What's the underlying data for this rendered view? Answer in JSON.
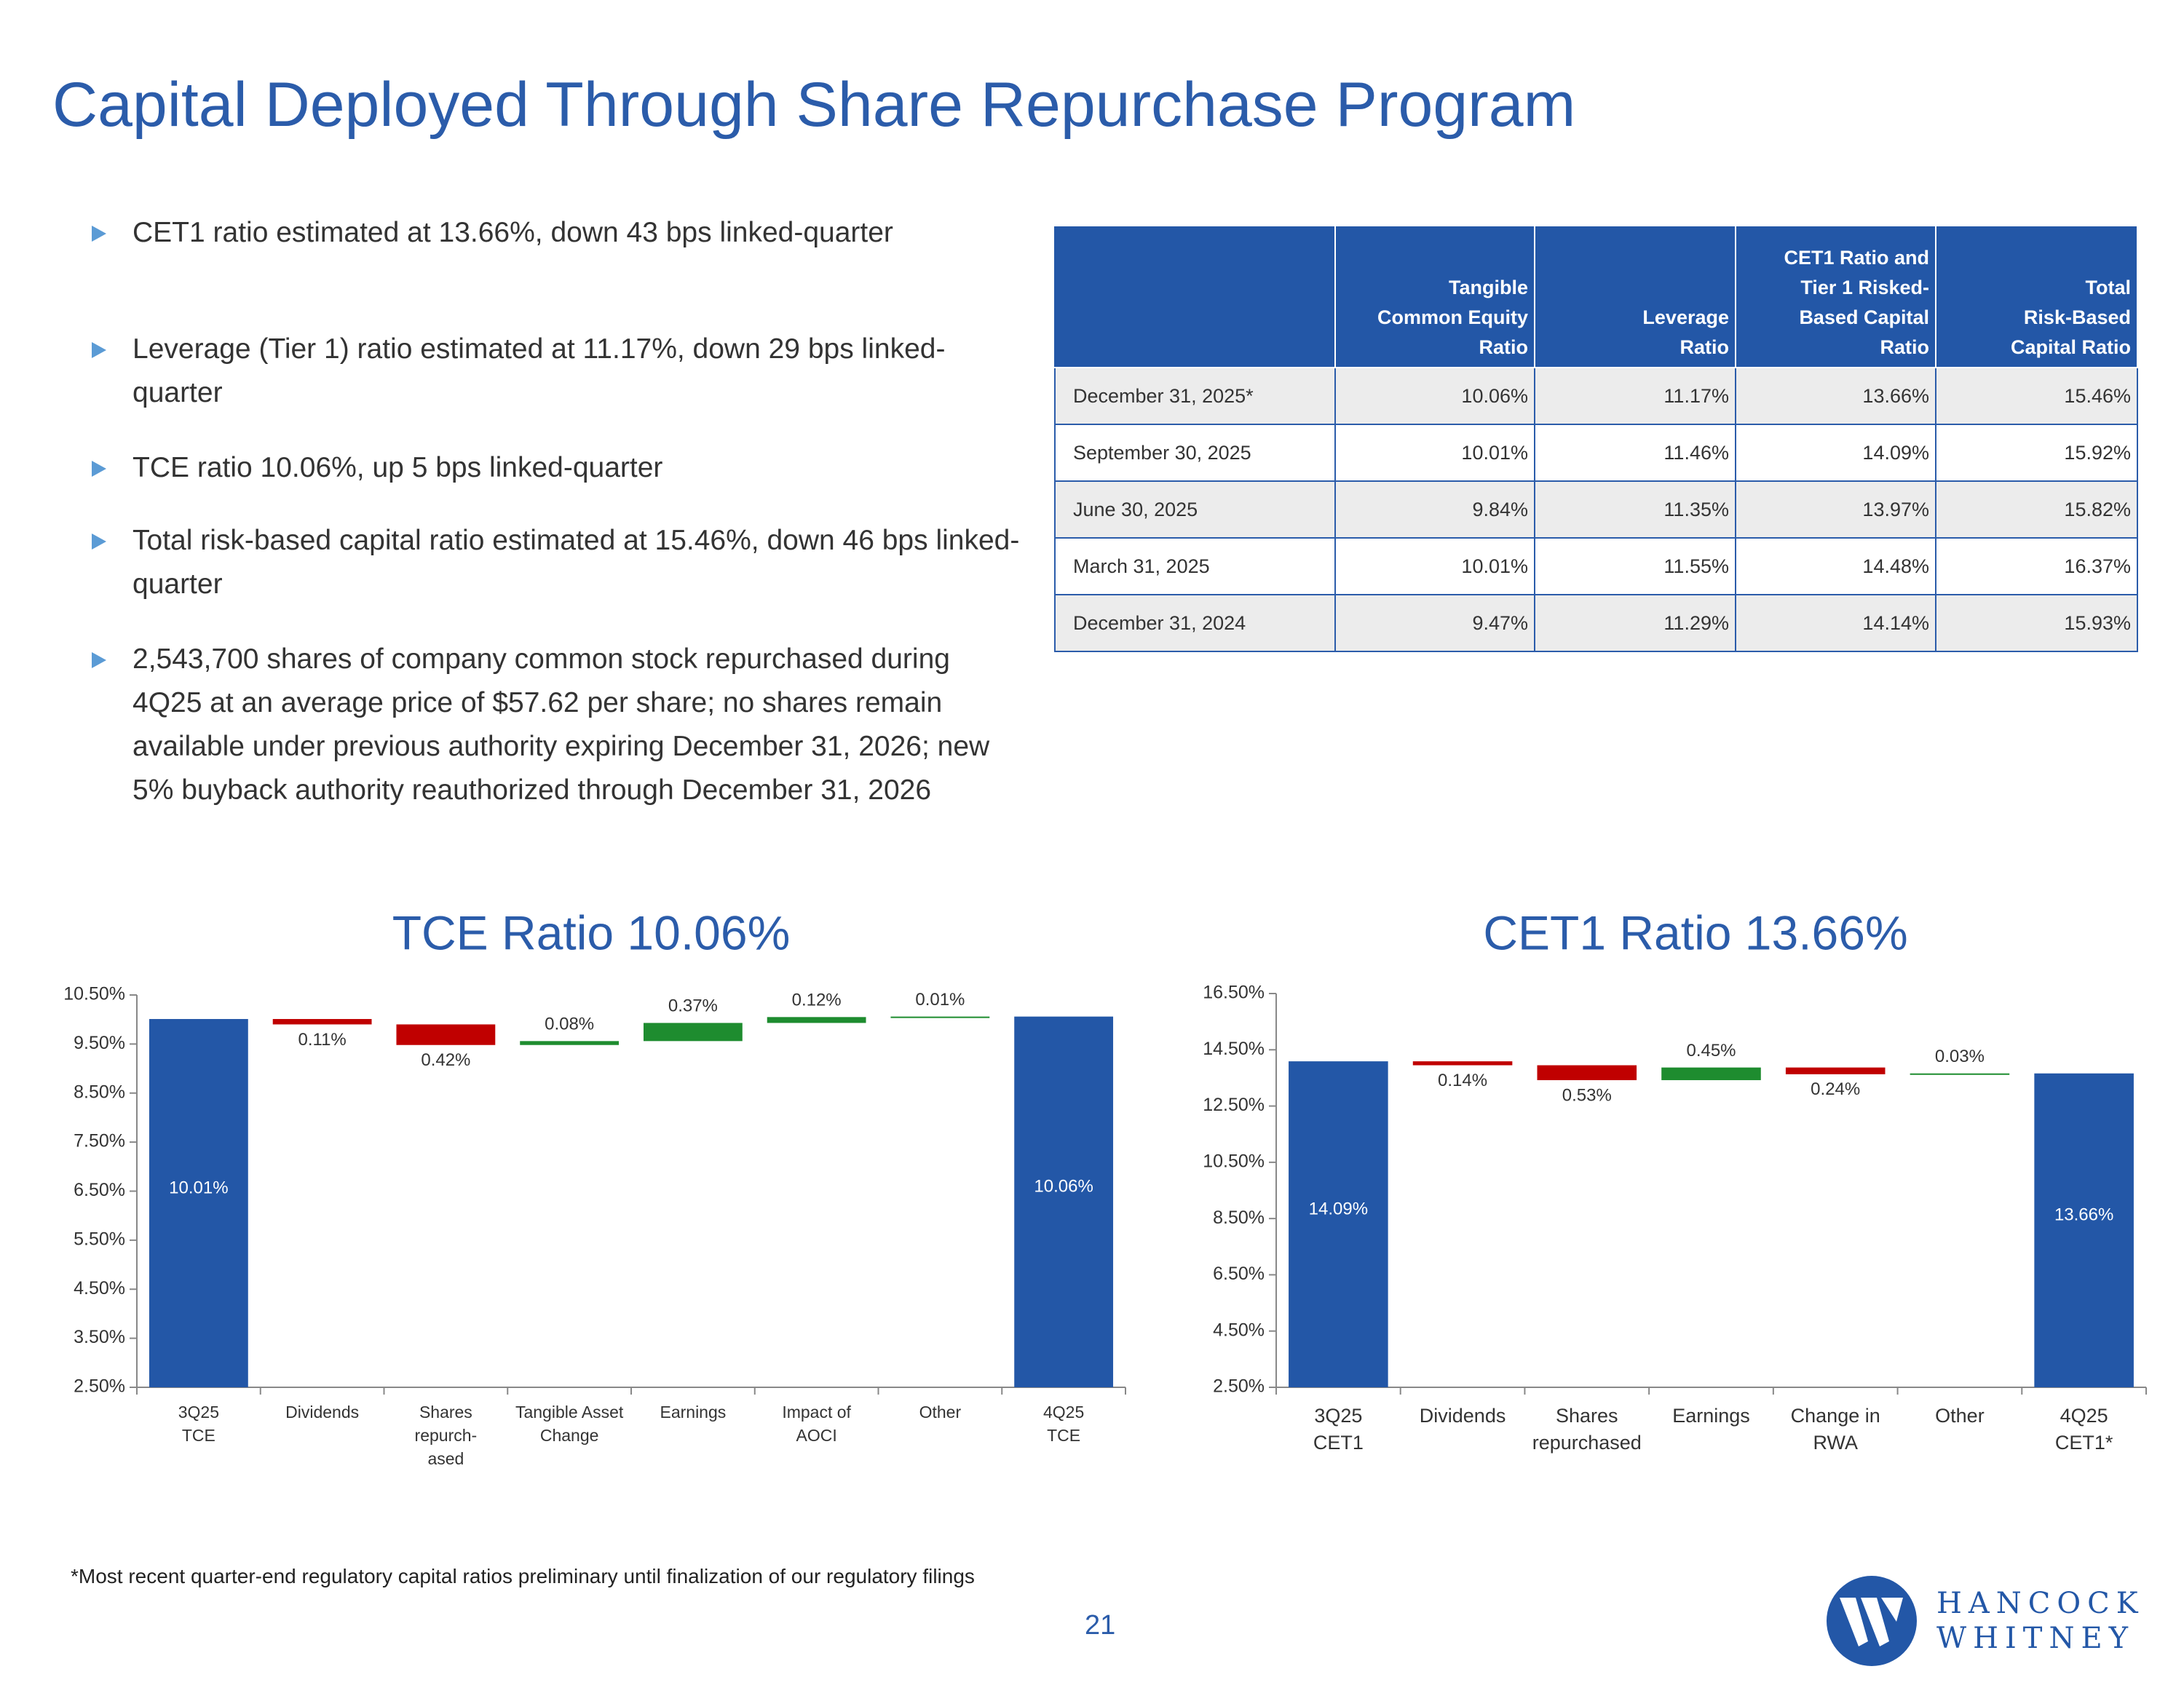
{
  "title": "Capital Deployed Through Share Repurchase Program",
  "bullets": [
    "CET1 ratio estimated at 13.66%, down 43 bps linked-quarter",
    "Leverage (Tier 1) ratio estimated at 11.17%, down 29 bps linked-quarter",
    "TCE ratio 10.06%, up 5 bps linked-quarter",
    "Total risk-based capital ratio estimated at 15.46%, down 46 bps linked-quarter",
    "2,543,700 shares of company common stock repurchased during 4Q25 at an average price of $57.62 per share; no shares remain available under previous authority expiring December 31, 2026; new 5% buyback authority reauthorized through December 31, 2026"
  ],
  "table": {
    "header": [
      "Tangible\nCommon Equity\nRatio",
      "Leverage\nRatio",
      "CET1 Ratio and\nTier 1 Risked-\nBased Capital\nRatio",
      "Total\nRisk-Based\nCapital Ratio"
    ],
    "rows": [
      [
        "December 31, 2025*",
        "10.06%",
        "11.17%",
        "13.66%",
        "15.46%"
      ],
      [
        "September 30, 2025",
        "10.01%",
        "11.46%",
        "14.09%",
        "15.92%"
      ],
      [
        "June 30, 2025",
        "9.84%",
        "11.35%",
        "13.97%",
        "15.82%"
      ],
      [
        "March 31, 2025",
        "10.01%",
        "11.55%",
        "14.48%",
        "16.37%"
      ],
      [
        "December 31, 2024",
        "9.47%",
        "11.29%",
        "14.14%",
        "15.93%"
      ]
    ]
  },
  "chart_data": [
    {
      "type": "waterfall",
      "title": "TCE Ratio 10.06%",
      "categories": [
        "3Q25\nTCE",
        "Dividends",
        "Shares\nrepurch-\nased",
        "Tangible Asset\nChange",
        "Earnings",
        "Impact of\nAOCI",
        "Other",
        "4Q25\nTCE"
      ],
      "measures": [
        "total",
        "relative",
        "relative",
        "relative",
        "relative",
        "relative",
        "relative",
        "total"
      ],
      "values": [
        10.01,
        -0.11,
        -0.42,
        0.08,
        0.37,
        0.12,
        0.01,
        10.06
      ],
      "value_labels": [
        "10.01%",
        "0.11%",
        "0.42%",
        "0.08%",
        "0.37%",
        "0.12%",
        "0.01%",
        "10.06%"
      ],
      "colors": {
        "total": "#2357a7",
        "increase": "#1e8c2f",
        "decrease": "#c00000"
      },
      "ylim": [
        2.5,
        10.5
      ],
      "yticks": [
        {
          "value": 2.5,
          "label": "2.50%"
        },
        {
          "value": 3.5,
          "label": "3.50%"
        },
        {
          "value": 4.5,
          "label": "4.50%"
        },
        {
          "value": 5.5,
          "label": "5.50%"
        },
        {
          "value": 6.5,
          "label": "6.50%"
        },
        {
          "value": 7.5,
          "label": "7.50%"
        },
        {
          "value": 8.5,
          "label": "8.50%"
        },
        {
          "value": 9.5,
          "label": "9.50%"
        },
        {
          "value": 10.5,
          "label": "10.50%"
        }
      ]
    },
    {
      "type": "waterfall",
      "title": "CET1 Ratio 13.66%",
      "categories": [
        "3Q25\nCET1",
        "Dividends",
        "Shares\nrepurchased",
        "Earnings",
        "Change in\nRWA",
        "Other",
        "4Q25\nCET1*"
      ],
      "measures": [
        "total",
        "relative",
        "relative",
        "relative",
        "relative",
        "relative",
        "total"
      ],
      "values": [
        14.09,
        -0.14,
        -0.53,
        0.45,
        -0.24,
        0.03,
        13.66
      ],
      "value_labels": [
        "14.09%",
        "0.14%",
        "0.53%",
        "0.45%",
        "0.24%",
        "0.03%",
        "13.66%"
      ],
      "colors": {
        "total": "#2357a7",
        "increase": "#1e8c2f",
        "decrease": "#c00000"
      },
      "ylim": [
        2.5,
        16.5
      ],
      "yticks": [
        {
          "value": 2.5,
          "label": "2.50%"
        },
        {
          "value": 4.5,
          "label": "4.50%"
        },
        {
          "value": 6.5,
          "label": "6.50%"
        },
        {
          "value": 8.5,
          "label": "8.50%"
        },
        {
          "value": 10.5,
          "label": "10.50%"
        },
        {
          "value": 12.5,
          "label": "12.50%"
        },
        {
          "value": 14.5,
          "label": "14.50%"
        },
        {
          "value": 16.5,
          "label": "16.50%"
        }
      ]
    }
  ],
  "footnote": "*Most recent quarter-end regulatory capital ratios preliminary until finalization of our regulatory filings",
  "page_number": "21",
  "logo": [
    "HANCOCK",
    "WHITNEY"
  ]
}
